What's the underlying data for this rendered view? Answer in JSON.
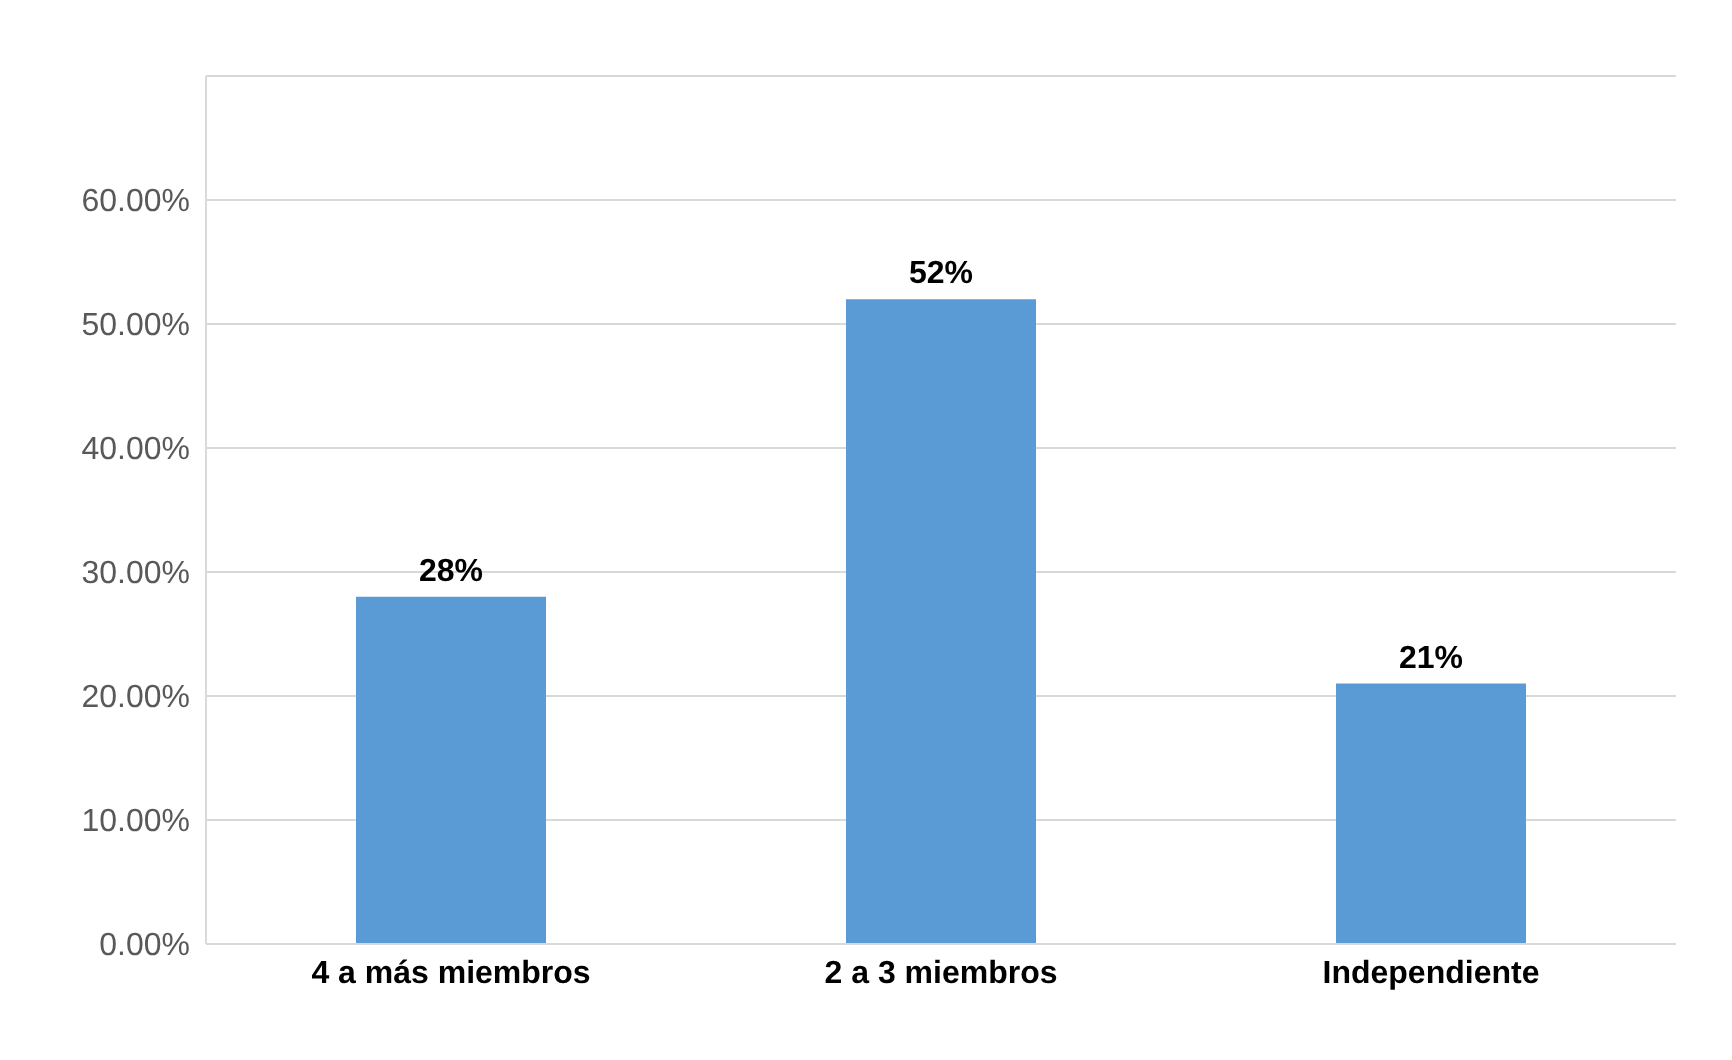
{
  "chart_data": {
    "type": "bar",
    "categories": [
      "4 a más miembros",
      "2 a 3 miembros",
      "Independiente"
    ],
    "values": [
      28,
      52,
      21
    ],
    "color": "#5b9bd5",
    "value_labels": [
      "28%",
      "52%",
      "21%"
    ],
    "ylim": [
      0,
      70
    ],
    "yticks": [
      {
        "value": 0,
        "label": "0.00%"
      },
      {
        "value": 10,
        "label": "10.00%"
      },
      {
        "value": 20,
        "label": "20.00%"
      },
      {
        "value": 30,
        "label": "30.00%"
      },
      {
        "value": 40,
        "label": "40.00%"
      },
      {
        "value": 50,
        "label": "50.00%"
      },
      {
        "value": 60,
        "label": "60.00%"
      },
      {
        "value": 70,
        "label": null
      }
    ],
    "grid": "y"
  }
}
